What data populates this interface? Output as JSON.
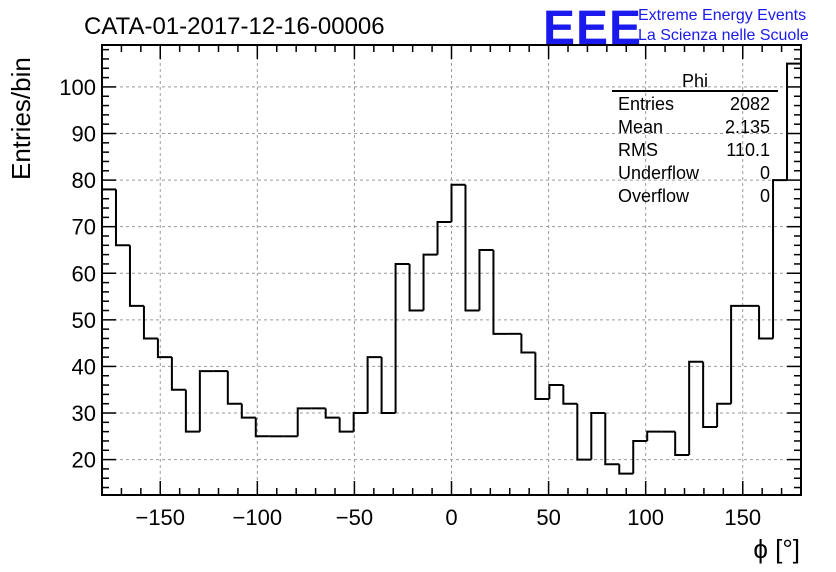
{
  "chart_data": {
    "type": "histogram",
    "title": "CATA-01-2017-12-16-00006",
    "xlabel": "ϕ [°]",
    "ylabel": "Entries/bin",
    "xlim": [
      -180,
      180
    ],
    "ylim": [
      12.4,
      109.0
    ],
    "grid": true,
    "x_ticks": [
      -150,
      -100,
      -50,
      0,
      50,
      100,
      150
    ],
    "y_ticks": [
      20,
      30,
      40,
      50,
      60,
      70,
      80,
      90,
      100
    ],
    "bin_edges_start": -180,
    "bin_width": 7.2,
    "values": [
      78,
      66,
      53,
      46,
      42,
      35,
      26,
      39,
      39,
      32,
      29,
      25,
      25,
      25,
      31,
      31,
      29,
      26,
      30,
      42,
      30,
      62,
      52,
      64,
      71,
      79,
      52,
      65,
      47,
      47,
      43,
      33,
      36,
      32,
      20,
      30,
      19,
      17,
      24,
      26,
      26,
      21,
      41,
      27,
      32,
      53,
      53,
      46,
      80,
      105
    ],
    "line_color": "#000000"
  },
  "stats_box": {
    "name": "Phi",
    "rows": [
      {
        "label": "Entries",
        "value": "2082"
      },
      {
        "label": "Mean",
        "value": "2.135"
      },
      {
        "label": "RMS",
        "value": "110.1"
      },
      {
        "label": "Underflow",
        "value": "0"
      },
      {
        "label": "Overflow",
        "value": "0"
      }
    ]
  },
  "logo": {
    "mark": "EEE",
    "line1": "Extreme Energy Events",
    "line2": "La Scienza nelle Scuole",
    "color": "#1a1aee"
  }
}
